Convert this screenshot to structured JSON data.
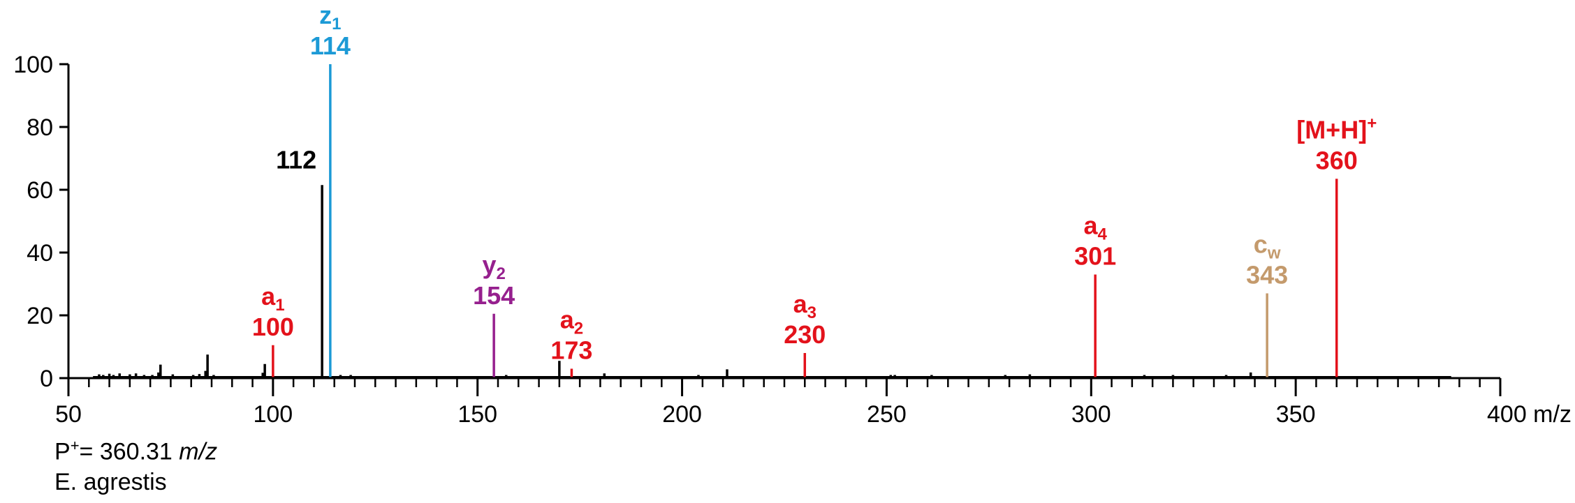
{
  "chart_data": {
    "type": "bar",
    "x_axis": {
      "min": 50,
      "max": 400,
      "ticks": [
        50,
        100,
        150,
        200,
        250,
        300,
        350,
        400
      ],
      "tick_labels": [
        "50",
        "100",
        "150",
        "200",
        "250",
        "300",
        "350",
        "400 m/z"
      ]
    },
    "y_axis": {
      "min": 0,
      "max": 100,
      "ticks": [
        0,
        20,
        40,
        60,
        80,
        100
      ],
      "tick_labels": [
        "0",
        "20",
        "40",
        "60",
        "80",
        "100"
      ]
    },
    "grid": false,
    "labeled_peaks": [
      {
        "mz": 100,
        "intensity": 10.5,
        "ion": "a",
        "sub": "1",
        "sup": "",
        "mass_label": "100",
        "color": "#e3121b"
      },
      {
        "mz": 112,
        "intensity": 61.5,
        "ion": "",
        "sub": "",
        "sup": "",
        "mass_label": "112",
        "color": "#000000"
      },
      {
        "mz": 114,
        "intensity": 100,
        "ion": "z",
        "sub": "1",
        "sup": "",
        "mass_label": "114",
        "color": "#1c9ad6"
      },
      {
        "mz": 154,
        "intensity": 20.5,
        "ion": "y",
        "sub": "2",
        "sup": "",
        "mass_label": "154",
        "color": "#96208e"
      },
      {
        "mz": 173,
        "intensity": 3,
        "ion": "a",
        "sub": "2",
        "sup": "",
        "mass_label": "173",
        "color": "#e3121b"
      },
      {
        "mz": 230,
        "intensity": 8,
        "ion": "a",
        "sub": "3",
        "sup": "",
        "mass_label": "230",
        "color": "#e3121b"
      },
      {
        "mz": 301,
        "intensity": 33,
        "ion": "a",
        "sub": "4",
        "sup": "",
        "mass_label": "301",
        "color": "#e3121b"
      },
      {
        "mz": 343,
        "intensity": 27,
        "ion": "c",
        "sub": "w",
        "sup": "",
        "mass_label": "343",
        "color": "#c49a6c"
      },
      {
        "mz": 360,
        "intensity": 63.5,
        "ion": "[M+H]",
        "sub": "",
        "sup": "+",
        "mass_label": "360",
        "color": "#e3121b"
      }
    ],
    "minor_peaks": [
      {
        "mz": 57.5,
        "intensity": 1.2
      },
      {
        "mz": 58.5,
        "intensity": 1.0
      },
      {
        "mz": 60,
        "intensity": 1.4
      },
      {
        "mz": 61,
        "intensity": 1.0
      },
      {
        "mz": 62.5,
        "intensity": 1.5
      },
      {
        "mz": 65,
        "intensity": 1.2
      },
      {
        "mz": 66.5,
        "intensity": 1.5
      },
      {
        "mz": 68.5,
        "intensity": 1.0
      },
      {
        "mz": 70.5,
        "intensity": 1.0
      },
      {
        "mz": 72,
        "intensity": 1.8
      },
      {
        "mz": 72.5,
        "intensity": 4.3
      },
      {
        "mz": 75.5,
        "intensity": 1.2
      },
      {
        "mz": 80.5,
        "intensity": 1.0
      },
      {
        "mz": 82,
        "intensity": 1.3
      },
      {
        "mz": 83.5,
        "intensity": 2.3
      },
      {
        "mz": 84,
        "intensity": 7.5
      },
      {
        "mz": 85.5,
        "intensity": 1.0
      },
      {
        "mz": 97.5,
        "intensity": 1.7
      },
      {
        "mz": 98,
        "intensity": 4.5
      },
      {
        "mz": 116.5,
        "intensity": 1.0
      },
      {
        "mz": 119,
        "intensity": 1.0
      },
      {
        "mz": 157,
        "intensity": 1.0
      },
      {
        "mz": 170,
        "intensity": 5.5
      },
      {
        "mz": 181,
        "intensity": 1.5
      },
      {
        "mz": 204,
        "intensity": 1.0
      },
      {
        "mz": 211,
        "intensity": 2.8
      },
      {
        "mz": 251,
        "intensity": 1.0
      },
      {
        "mz": 252,
        "intensity": 1.0
      },
      {
        "mz": 261,
        "intensity": 1.0
      },
      {
        "mz": 279,
        "intensity": 1.0
      },
      {
        "mz": 285,
        "intensity": 1.2
      },
      {
        "mz": 313,
        "intensity": 1.0
      },
      {
        "mz": 320,
        "intensity": 1.0
      },
      {
        "mz": 333,
        "intensity": 1.0
      },
      {
        "mz": 339,
        "intensity": 1.8
      }
    ],
    "baseline_end_mz": 388
  },
  "notes": {
    "precursor_prefix": "P",
    "precursor_sup": "+",
    "precursor_value": "= 360.31 ",
    "precursor_unit": "m/z",
    "species": "E. agrestis"
  },
  "colors": {
    "axis": "#000000",
    "a_ions": "#e3121b",
    "z_ions": "#1c9ad6",
    "y_ions": "#96208e",
    "c_ions": "#c49a6c",
    "unassigned": "#000000"
  }
}
